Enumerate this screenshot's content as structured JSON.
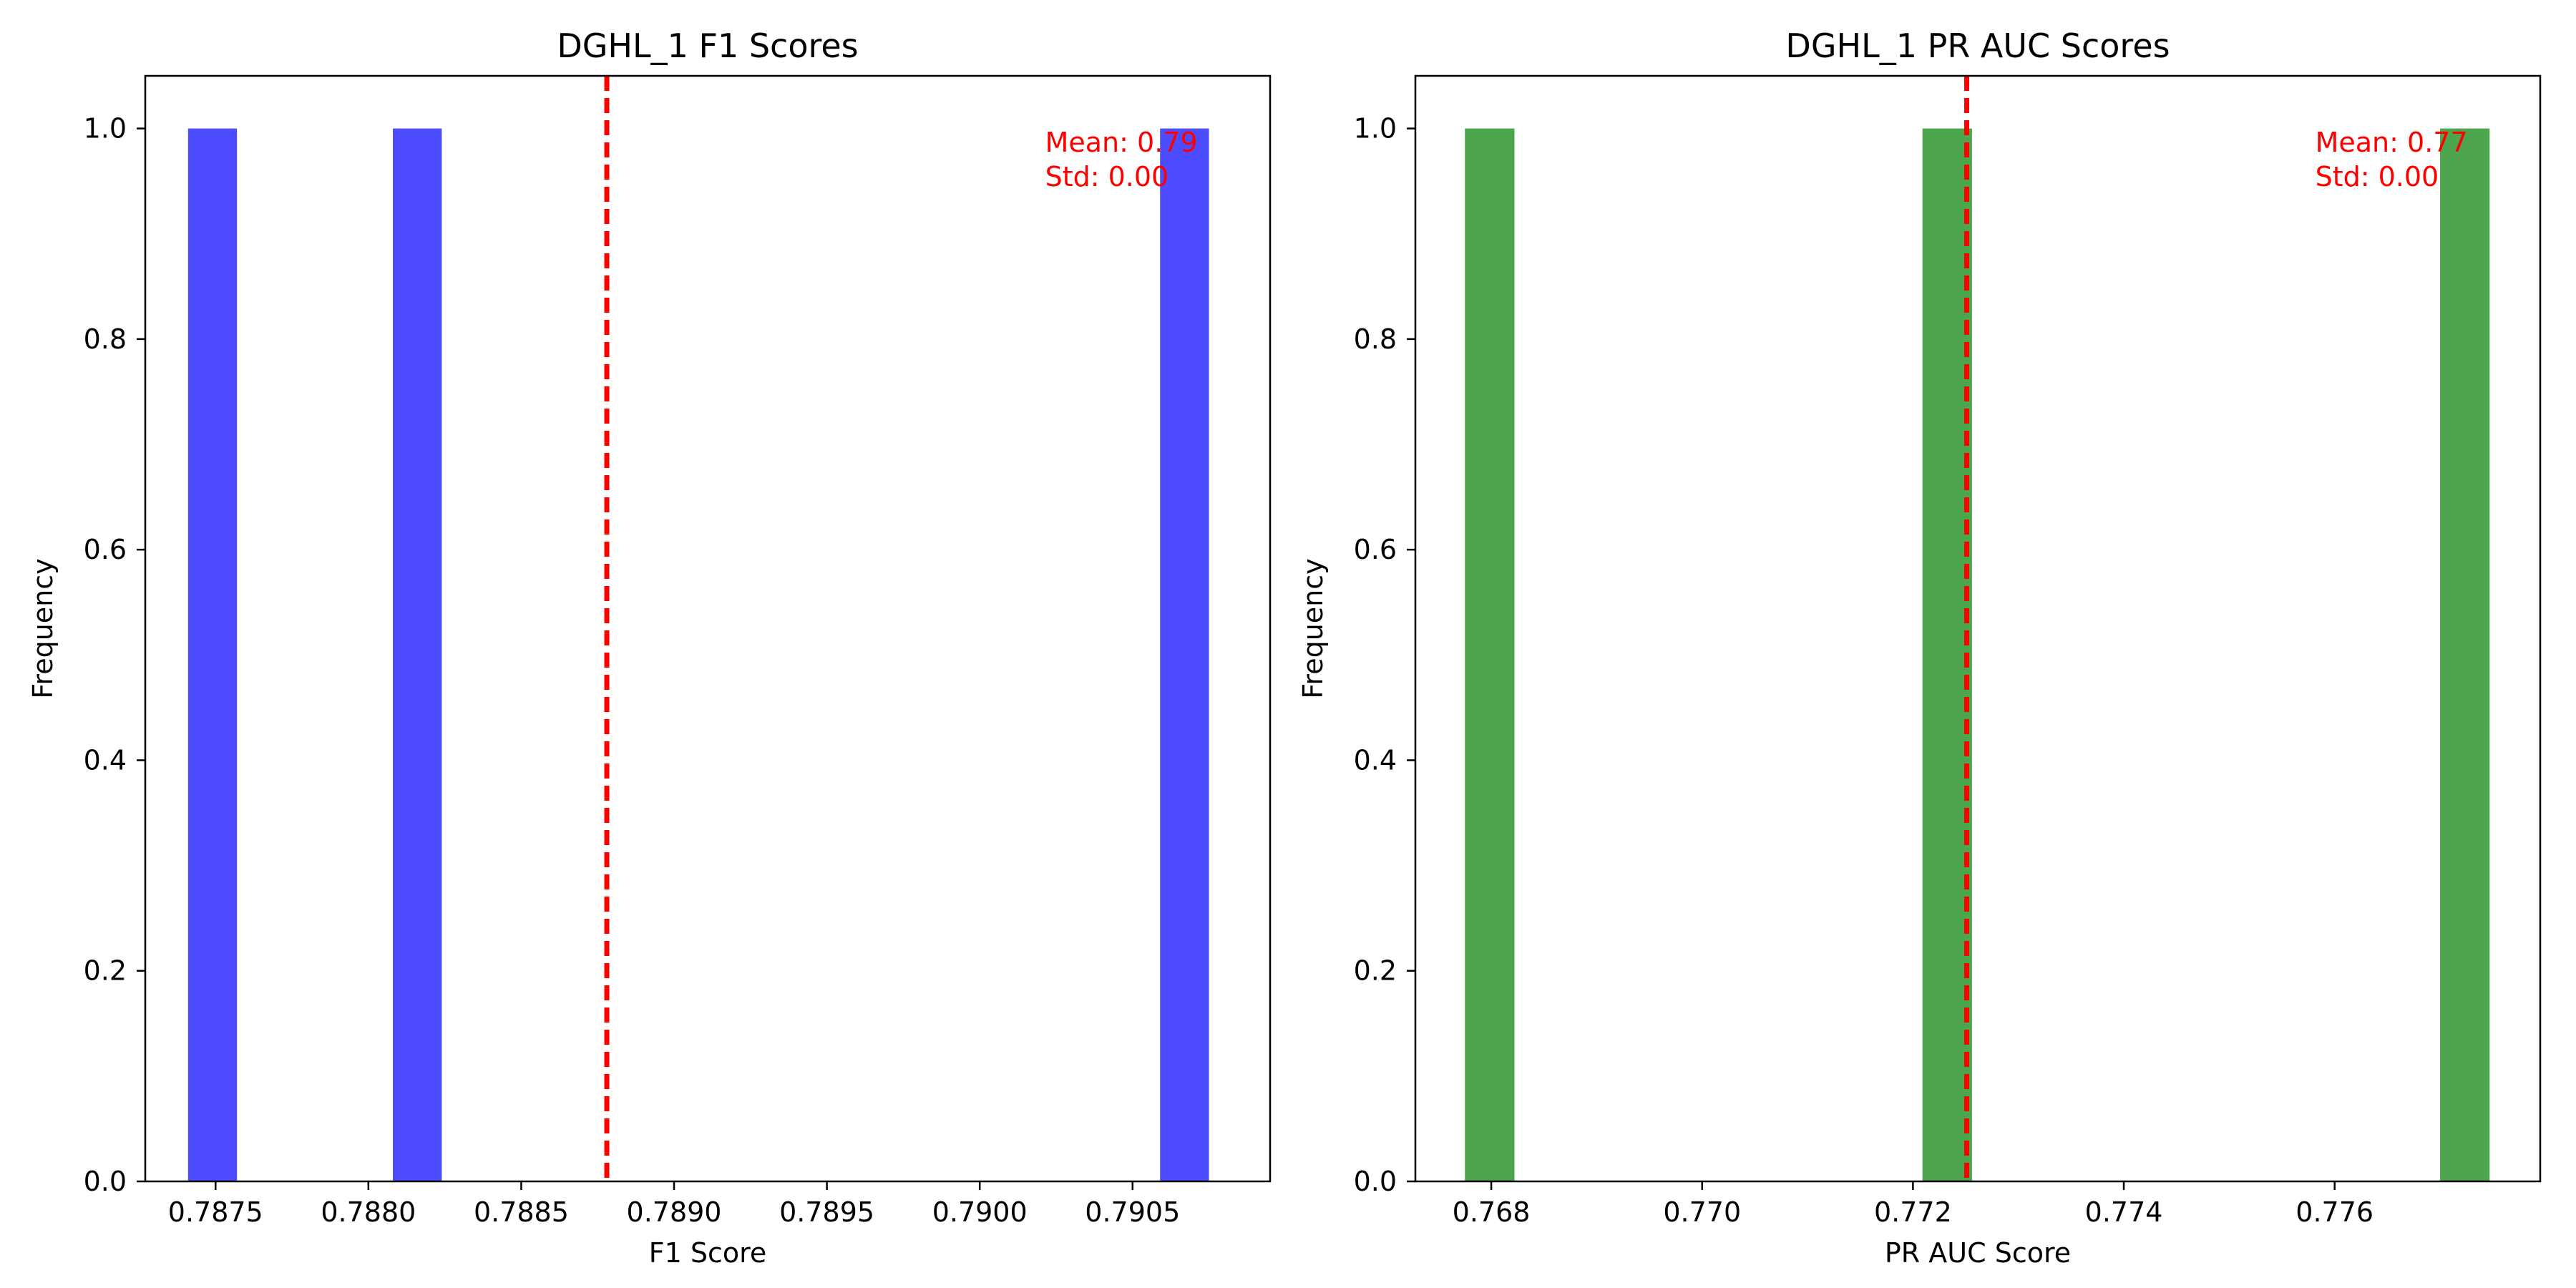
{
  "chart_data": [
    {
      "type": "bar",
      "title": "DGHL_1 F1 Scores",
      "xlabel": "F1 Score",
      "ylabel": "Frequency",
      "xlim": [
        0.78727,
        0.79095
      ],
      "ylim": [
        0,
        1.05
      ],
      "xticks": [
        0.7875,
        0.788,
        0.7885,
        0.789,
        0.7895,
        0.79,
        0.7905
      ],
      "xtick_labels": [
        "0.7875",
        "0.7880",
        "0.7885",
        "0.7890",
        "0.7895",
        "0.7900",
        "0.7905"
      ],
      "yticks": [
        0.0,
        0.2,
        0.4,
        0.6,
        0.8,
        1.0
      ],
      "ytick_labels": [
        "0.0",
        "0.2",
        "0.4",
        "0.6",
        "0.8",
        "1.0"
      ],
      "bar_color": "#4d4dff",
      "bars": [
        {
          "x0": 0.78741,
          "x1": 0.78757,
          "value": 1.0
        },
        {
          "x0": 0.78808,
          "x1": 0.78824,
          "value": 1.0
        },
        {
          "x0": 0.79059,
          "x1": 0.79075,
          "value": 1.0
        }
      ],
      "mean_line": 0.78878,
      "mean_line_color": "#ff0000",
      "annotation_lines": [
        "Mean: 0.79",
        "Std: 0.00"
      ],
      "annotation_color": "#ff0000",
      "annotation_position": "top-right"
    },
    {
      "type": "bar",
      "title": "DGHL_1 PR AUC Scores",
      "xlabel": "PR AUC Score",
      "ylabel": "Frequency",
      "xlim": [
        0.76728,
        0.77795
      ],
      "ylim": [
        0,
        1.05
      ],
      "xticks": [
        0.768,
        0.77,
        0.772,
        0.774,
        0.776
      ],
      "xtick_labels": [
        "0.768",
        "0.770",
        "0.772",
        "0.774",
        "0.776"
      ],
      "yticks": [
        0.0,
        0.2,
        0.4,
        0.6,
        0.8,
        1.0
      ],
      "ytick_labels": [
        "0.0",
        "0.2",
        "0.4",
        "0.6",
        "0.8",
        "1.0"
      ],
      "bar_color": "#4da64d",
      "bars": [
        {
          "x0": 0.76775,
          "x1": 0.76822,
          "value": 1.0
        },
        {
          "x0": 0.77209,
          "x1": 0.77256,
          "value": 1.0
        },
        {
          "x0": 0.777,
          "x1": 0.77747,
          "value": 1.0
        }
      ],
      "mean_line": 0.77251,
      "mean_line_color": "#ff0000",
      "annotation_lines": [
        "Mean: 0.77",
        "Std: 0.00"
      ],
      "annotation_color": "#ff0000",
      "annotation_position": "top-right"
    }
  ]
}
